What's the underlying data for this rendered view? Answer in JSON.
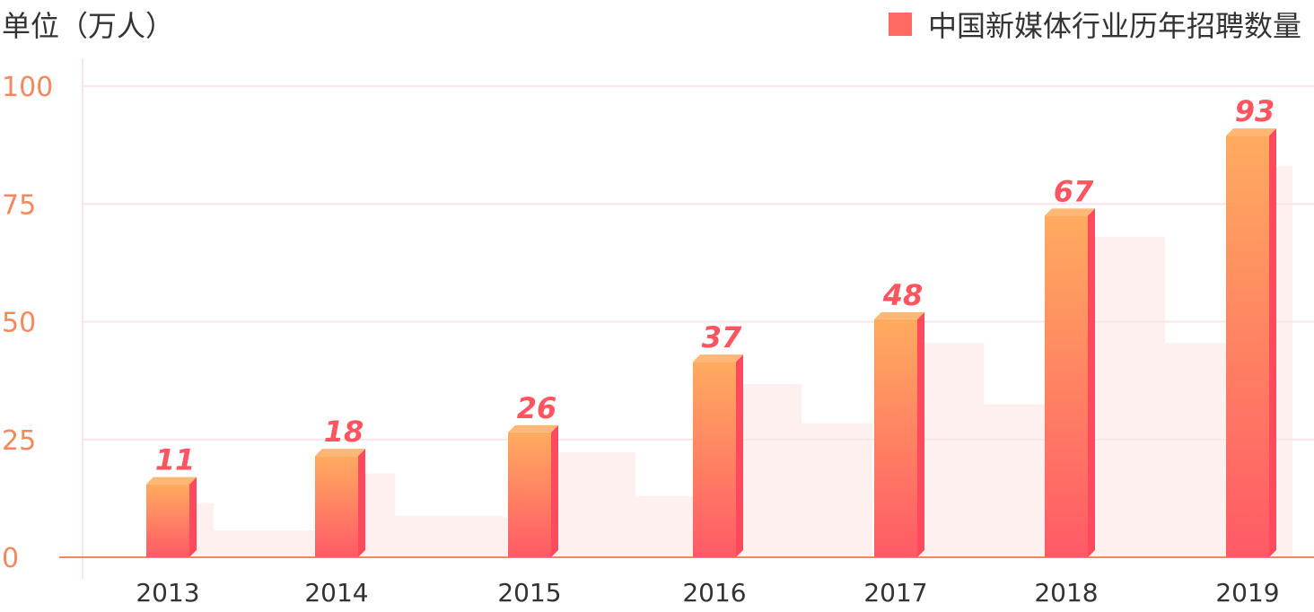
{
  "unit_label": "单位（万人）",
  "legend_label": "中国新媒体行业历年招聘数量",
  "colors": {
    "bar_top": "#ffab5f",
    "bar_bottom": "#ff5a66",
    "bar_side": "#ff4a5e",
    "bar_cap": "#ffb776",
    "data_label": "#ff5561",
    "axis_tick": "#f4885d",
    "grid": "#fbe4e8",
    "axis_line": "#f4885d",
    "year_tick": "#333333",
    "legend_swatch": "#ff6b63",
    "backdrop": "#fff0f0"
  },
  "chart_data": {
    "type": "bar",
    "categories": [
      "2013",
      "2014",
      "2015",
      "2016",
      "2017",
      "2018",
      "2019"
    ],
    "series": [
      {
        "name": "中国新媒体行业历年招聘数量",
        "values": [
          11,
          18,
          26,
          37,
          48,
          67,
          93
        ]
      }
    ],
    "data_labels": [
      "11",
      "18",
      "26",
      "37",
      "48",
      "67",
      "93"
    ],
    "yticks": [
      "0",
      "25",
      "50",
      "75",
      "100"
    ],
    "ylim": [
      0,
      100
    ],
    "legend_position": "top-right",
    "grid": true
  }
}
